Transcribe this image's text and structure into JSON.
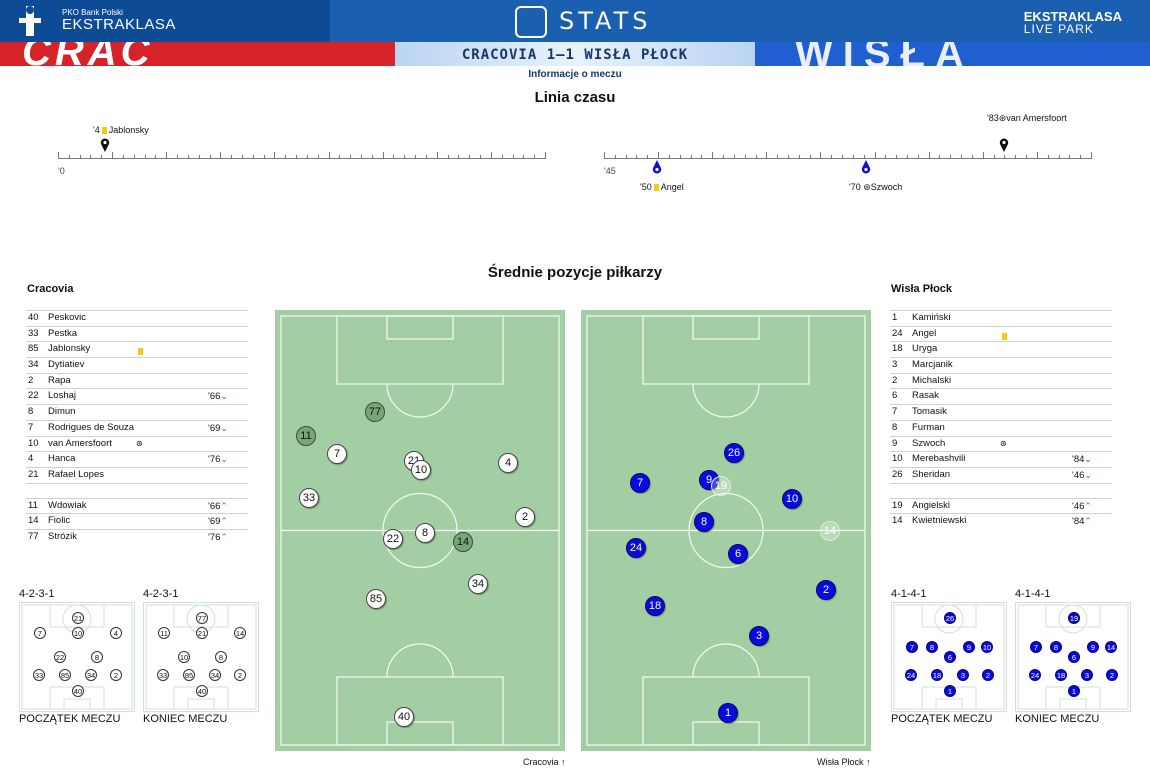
{
  "header": {
    "brand_small": "PKO Bank Polski",
    "brand_big": "EKSTRAKLASA",
    "stats_label": "STATS",
    "live_line1": "EKSTRAKLASA",
    "live_line2": "LIVE PARK"
  },
  "banner": {
    "left_text": "CRAC",
    "right_text": "WISŁA"
  },
  "match": {
    "score_title": "CRACOVIA 1–1 WISŁA PŁOCK",
    "info_link": "Informacje o meczu"
  },
  "timeline": {
    "title": "Linia czasu",
    "first_half_start": "'0",
    "second_half_start": "'45",
    "events": [
      {
        "minute": "'4",
        "player": "Jablonsky",
        "type": "yellow",
        "team": "home"
      },
      {
        "minute": "'50",
        "player": "Angel",
        "type": "yellow",
        "team": "away"
      },
      {
        "minute": "'70",
        "player": "Szwoch",
        "type": "goal",
        "team": "away"
      },
      {
        "minute": "'83",
        "player": "van Amersfoort",
        "type": "goal",
        "team": "home"
      }
    ]
  },
  "positions_title": "Średnie pozycje piłkarzy",
  "home": {
    "name": "Cracovia",
    "starters": [
      {
        "num": "40",
        "name": "Peskovic"
      },
      {
        "num": "33",
        "name": "Pestka"
      },
      {
        "num": "85",
        "name": "Jablonsky",
        "card": "yellow"
      },
      {
        "num": "34",
        "name": "Dytiatiev"
      },
      {
        "num": "2",
        "name": "Rapa"
      },
      {
        "num": "22",
        "name": "Loshaj",
        "sub": "'66",
        "dir": "down"
      },
      {
        "num": "8",
        "name": "Dimun"
      },
      {
        "num": "7",
        "name": "Rodrigues de Souza",
        "sub": "'69",
        "dir": "down"
      },
      {
        "num": "10",
        "name": "van Amersfoort",
        "goal": true
      },
      {
        "num": "4",
        "name": "Hanca",
        "sub": "'76",
        "dir": "down"
      },
      {
        "num": "21",
        "name": "Rafael Lopes"
      }
    ],
    "subs": [
      {
        "num": "11",
        "name": "Wdowiak",
        "sub": "'66",
        "dir": "up"
      },
      {
        "num": "14",
        "name": "Fiolic",
        "sub": "'69",
        "dir": "up"
      },
      {
        "num": "77",
        "name": "Strózik",
        "sub": "'76",
        "dir": "up"
      }
    ],
    "formation_start": "4-2-3-1",
    "formation_end": "4-2-3-1",
    "label_start": "POCZĄTEK MECZU",
    "label_end": "KONIEC MECZU",
    "pitch_label": "Cracovia"
  },
  "away": {
    "name": "Wisła Płock",
    "starters": [
      {
        "num": "1",
        "name": "Kamiński"
      },
      {
        "num": "24",
        "name": "Angel",
        "card": "yellow"
      },
      {
        "num": "18",
        "name": "Uryga"
      },
      {
        "num": "3",
        "name": "Marcjanik"
      },
      {
        "num": "2",
        "name": "Michalski"
      },
      {
        "num": "6",
        "name": "Rasak"
      },
      {
        "num": "7",
        "name": "Tomasik"
      },
      {
        "num": "8",
        "name": "Furman"
      },
      {
        "num": "9",
        "name": "Szwoch",
        "goal": true
      },
      {
        "num": "10",
        "name": "Merebashvili",
        "sub": "'84",
        "dir": "down"
      },
      {
        "num": "26",
        "name": "Sheridan",
        "sub": "'46",
        "dir": "down"
      }
    ],
    "subs": [
      {
        "num": "19",
        "name": "Angielski",
        "sub": "'46",
        "dir": "up"
      },
      {
        "num": "14",
        "name": "Kwietniewski",
        "sub": "'84",
        "dir": "up"
      }
    ],
    "formation_start": "4-1-4-1",
    "formation_end": "4-1-4-1",
    "label_start": "POCZĄTEK MECZU",
    "label_end": "KONIEC MECZU",
    "pitch_label": "Wisła Płock"
  },
  "colors": {
    "header_blue": "#1b5fb0",
    "home_red": "#d8222a",
    "away_blue": "#0a0adf",
    "pitch_green": "#a3cea3",
    "yellow_card": "#f2cc0f"
  }
}
